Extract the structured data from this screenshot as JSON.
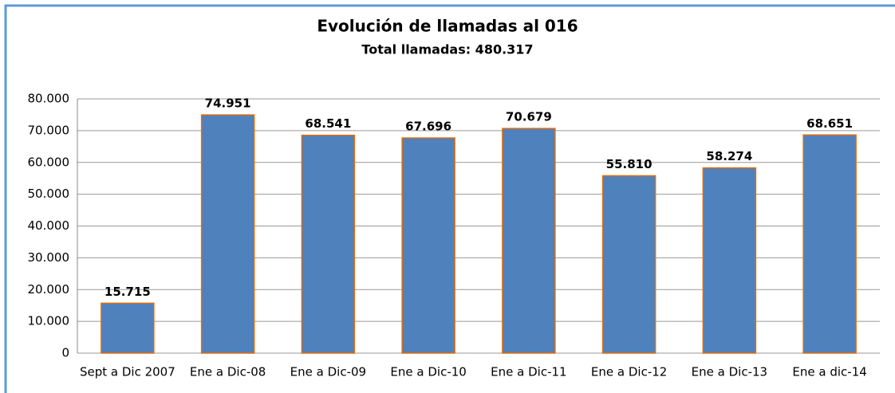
{
  "chart_data": {
    "type": "bar",
    "title": "Evolución de llamadas al 016",
    "subtitle": "Total llamadas: 480.317",
    "categories": [
      "Sept a Dic 2007",
      "Ene a Dic-08",
      "Ene a Dic-09",
      "Ene a Dic-10",
      "Ene a Dic-11",
      "Ene a Dic-12",
      "Ene a Dic-13",
      "Ene a dic-14"
    ],
    "values": [
      15715,
      74951,
      68541,
      67696,
      70679,
      55810,
      58274,
      68651
    ],
    "value_labels": [
      "15.715",
      "74.951",
      "68.541",
      "67.696",
      "70.679",
      "55.810",
      "58.274",
      "68.651"
    ],
    "color": "#4f81bd",
    "edgecolor": "#e36c09",
    "ylim": [
      0,
      80000
    ],
    "yticks": [
      0,
      {
        "value": 10000,
        "label": "10.000"
      },
      {
        "value": 20000,
        "label": "20.000"
      },
      {
        "value": 30000,
        "label": "30.000"
      },
      {
        "value": 40000,
        "label": "40.000"
      },
      {
        "value": 50000,
        "label": "50.000"
      },
      {
        "value": 60000,
        "label": "60.000"
      },
      {
        "value": 70000,
        "label": "70.000"
      },
      {
        "value": 80000,
        "label": "80.000"
      }
    ],
    "grid": true
  }
}
